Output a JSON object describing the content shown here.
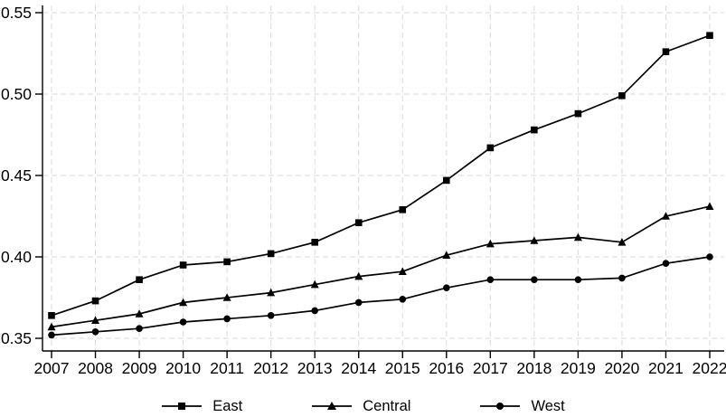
{
  "chart_data": {
    "type": "line",
    "title": "",
    "xlabel": "",
    "ylabel": "",
    "x": [
      2007,
      2008,
      2009,
      2010,
      2011,
      2012,
      2013,
      2014,
      2015,
      2016,
      2017,
      2018,
      2019,
      2020,
      2021,
      2022
    ],
    "series": [
      {
        "name": "East",
        "marker": "square",
        "values": [
          0.364,
          0.373,
          0.386,
          0.395,
          0.397,
          0.402,
          0.409,
          0.421,
          0.429,
          0.447,
          0.467,
          0.478,
          0.488,
          0.499,
          0.526,
          0.536
        ]
      },
      {
        "name": "Central",
        "marker": "triangle",
        "values": [
          0.357,
          0.361,
          0.365,
          0.372,
          0.375,
          0.378,
          0.383,
          0.388,
          0.391,
          0.401,
          0.408,
          0.41,
          0.412,
          0.409,
          0.425,
          0.431
        ]
      },
      {
        "name": "West",
        "marker": "circle",
        "values": [
          0.352,
          0.354,
          0.356,
          0.36,
          0.362,
          0.364,
          0.367,
          0.372,
          0.374,
          0.381,
          0.386,
          0.386,
          0.386,
          0.387,
          0.396,
          0.4
        ]
      }
    ],
    "ylim": [
      0.35,
      0.55
    ],
    "yticks": [
      0.35,
      0.4,
      0.45,
      0.5,
      0.55
    ],
    "ytick_labels": [
      "0.35",
      "0.40",
      "0.45",
      "0.50",
      "0.55"
    ],
    "xtick_labels": [
      "2007",
      "2008",
      "2009",
      "2010",
      "2011",
      "2012",
      "2013",
      "2014",
      "2015",
      "2016",
      "2017",
      "2018",
      "2019",
      "2020",
      "2021",
      "2022"
    ],
    "grid": "both, dashed",
    "legend_position": "bottom-center",
    "line_color": "#000000",
    "text_color": "#000000",
    "grid_color": "#d9d9d9",
    "background": "#ffffff"
  }
}
